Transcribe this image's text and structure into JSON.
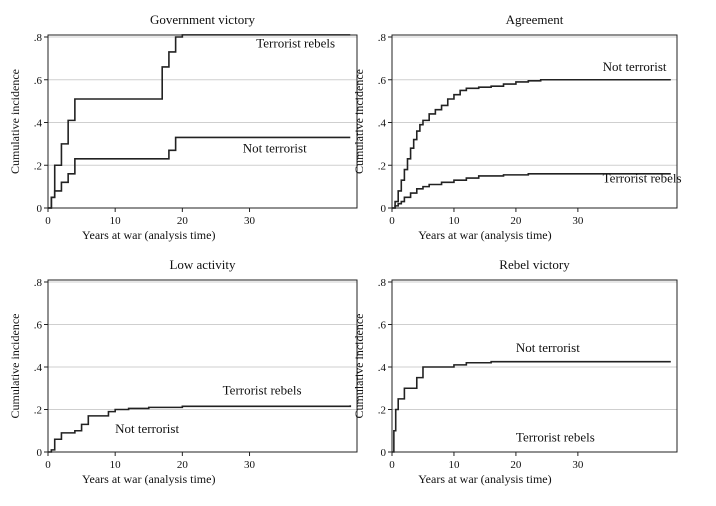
{
  "chart_data": [
    {
      "type": "line",
      "title": "Government victory",
      "xlabel": "Years at war (analysis time)",
      "ylabel": "Cumulative incidence",
      "xlim": [
        0,
        46
      ],
      "ylim": [
        0,
        0.8
      ],
      "x_ticks": [
        0,
        10,
        20,
        30
      ],
      "y_ticks": [
        0,
        0.2,
        0.4,
        0.6,
        0.8
      ],
      "y_tick_labels": [
        "0",
        ".2",
        ".4",
        ".6",
        ".8"
      ],
      "grid": true,
      "step": true,
      "series": [
        {
          "name": "Terrorist rebels",
          "x": [
            0,
            0.5,
            1,
            2,
            3,
            4,
            17,
            18,
            19,
            20,
            45
          ],
          "y": [
            0,
            0.05,
            0.2,
            0.3,
            0.41,
            0.51,
            0.66,
            0.73,
            0.8,
            0.81,
            0.81
          ]
        },
        {
          "name": "Not terrorist",
          "x": [
            0,
            0.5,
            1,
            2,
            3,
            4,
            18,
            19,
            45
          ],
          "y": [
            0,
            0.05,
            0.08,
            0.12,
            0.16,
            0.23,
            0.27,
            0.33,
            0.33
          ]
        }
      ],
      "annotations": [
        {
          "text": "Terrorist rebels",
          "x": 31,
          "y": 0.75
        },
        {
          "text": "Not terrorist",
          "x": 29,
          "y": 0.26
        }
      ]
    },
    {
      "type": "line",
      "title": "Agreement",
      "xlabel": "Years at war (analysis time)",
      "ylabel": "Cumulative incidence",
      "xlim": [
        0,
        46
      ],
      "ylim": [
        0,
        0.8
      ],
      "x_ticks": [
        0,
        10,
        20,
        30
      ],
      "y_ticks": [
        0,
        0.2,
        0.4,
        0.6,
        0.8
      ],
      "y_tick_labels": [
        "0",
        ".2",
        ".4",
        ".6",
        ".8"
      ],
      "grid": true,
      "step": true,
      "series": [
        {
          "name": "Not terrorist",
          "x": [
            0,
            0.5,
            1,
            1.5,
            2,
            2.5,
            3,
            3.5,
            4,
            4.5,
            5,
            6,
            7,
            8,
            9,
            10,
            11,
            12,
            14,
            16,
            18,
            20,
            22,
            24,
            45
          ],
          "y": [
            0,
            0.03,
            0.08,
            0.13,
            0.18,
            0.23,
            0.28,
            0.32,
            0.36,
            0.39,
            0.41,
            0.44,
            0.46,
            0.48,
            0.51,
            0.53,
            0.55,
            0.56,
            0.565,
            0.57,
            0.58,
            0.59,
            0.595,
            0.6,
            0.6
          ]
        },
        {
          "name": "Terrorist rebels",
          "x": [
            0,
            0.5,
            1,
            1.5,
            2,
            3,
            4,
            5,
            6,
            8,
            10,
            12,
            14,
            18,
            22,
            45
          ],
          "y": [
            0,
            0.01,
            0.02,
            0.03,
            0.05,
            0.07,
            0.09,
            0.1,
            0.11,
            0.12,
            0.13,
            0.14,
            0.15,
            0.155,
            0.16,
            0.16
          ]
        }
      ],
      "annotations": [
        {
          "text": "Not terrorist",
          "x": 34,
          "y": 0.64
        },
        {
          "text": "Terrorist rebels",
          "x": 34,
          "y": 0.12
        }
      ]
    },
    {
      "type": "line",
      "title": "Low activity",
      "xlabel": "Years at war (analysis time)",
      "ylabel": "Cumulative incidence",
      "xlim": [
        0,
        46
      ],
      "ylim": [
        0,
        0.8
      ],
      "x_ticks": [
        0,
        10,
        20,
        30
      ],
      "y_ticks": [
        0,
        0.2,
        0.4,
        0.6,
        0.8
      ],
      "y_tick_labels": [
        "0",
        ".2",
        ".4",
        ".6",
        ".8"
      ],
      "grid": true,
      "step": true,
      "series": [
        {
          "name": "Terrorist rebels",
          "x": [
            0,
            0.5,
            1,
            2,
            4,
            5,
            6,
            9,
            10,
            12,
            15,
            20,
            45
          ],
          "y": [
            0,
            0.01,
            0.06,
            0.09,
            0.1,
            0.13,
            0.17,
            0.19,
            0.2,
            0.205,
            0.21,
            0.215,
            0.22
          ]
        }
      ],
      "annotations": [
        {
          "text": "Terrorist rebels",
          "x": 26,
          "y": 0.27
        },
        {
          "text": "Not terrorist",
          "x": 10,
          "y": 0.09
        }
      ]
    },
    {
      "type": "line",
      "title": "Rebel victory",
      "xlabel": "Years at war (analysis time)",
      "ylabel": "Cumulative incidence",
      "xlim": [
        0,
        46
      ],
      "ylim": [
        0,
        0.8
      ],
      "x_ticks": [
        0,
        10,
        20,
        30
      ],
      "y_ticks": [
        0,
        0.2,
        0.4,
        0.6,
        0.8
      ],
      "y_tick_labels": [
        "0",
        ".2",
        ".4",
        ".6",
        ".8"
      ],
      "grid": true,
      "step": true,
      "series": [
        {
          "name": "Not terrorist",
          "x": [
            0,
            0.3,
            0.6,
            1,
            2,
            4,
            5,
            10,
            12,
            16,
            45
          ],
          "y": [
            0,
            0.1,
            0.2,
            0.25,
            0.3,
            0.35,
            0.4,
            0.41,
            0.42,
            0.425,
            0.425
          ]
        }
      ],
      "annotations": [
        {
          "text": "Not terrorist",
          "x": 20,
          "y": 0.47
        },
        {
          "text": "Terrorist rebels",
          "x": 20,
          "y": 0.05
        }
      ]
    }
  ]
}
